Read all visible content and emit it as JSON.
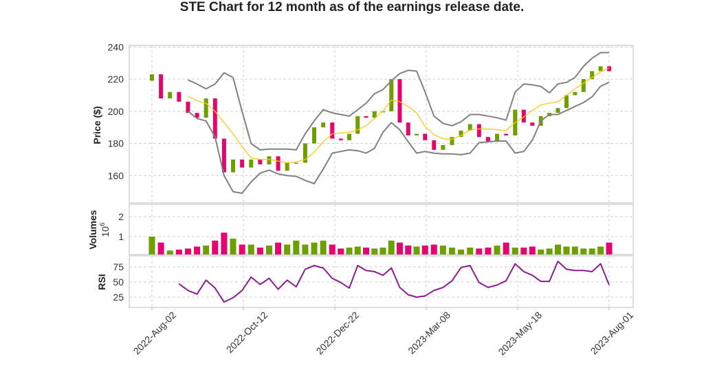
{
  "chart_data": [
    {
      "type": "candlestick",
      "title": "STE Chart for 12 month as of the earnings release date.",
      "ylabel": "Price ($)",
      "ylim": [
        143,
        241
      ],
      "yticks": [
        160,
        180,
        200,
        220,
        240
      ],
      "grid": true,
      "x_ticks": [
        {
          "label": "2022-Aug-02",
          "date": "2022-08-02",
          "index": 0
        },
        {
          "label": "2022-Oct-12",
          "date": "2022-10-12",
          "index": 50
        },
        {
          "label": "2022-Dec-22",
          "date": "2022-12-22",
          "index": 100
        },
        {
          "label": "2023-Mar-08",
          "date": "2023-03-08",
          "index": 150
        },
        {
          "label": "2023-May-18",
          "date": "2023-05-18",
          "index": 200
        },
        {
          "label": "2023-Aug-01",
          "date": "2023-08-01",
          "index": 250
        }
      ],
      "dates": [
        "2022-08-02",
        "2022-08-09",
        "2022-08-16",
        "2022-08-23",
        "2022-08-30",
        "2022-09-06",
        "2022-09-13",
        "2022-09-20",
        "2022-09-27",
        "2022-10-04",
        "2022-10-11",
        "2022-10-18",
        "2022-10-25",
        "2022-11-01",
        "2022-11-08",
        "2022-11-15",
        "2022-11-22",
        "2022-11-29",
        "2022-12-06",
        "2022-12-13",
        "2022-12-20",
        "2022-12-27",
        "2023-01-03",
        "2023-01-10",
        "2023-01-17",
        "2023-01-24",
        "2023-01-31",
        "2023-02-07",
        "2023-02-14",
        "2023-02-21",
        "2023-02-28",
        "2023-03-07",
        "2023-03-14",
        "2023-03-21",
        "2023-03-28",
        "2023-04-04",
        "2023-04-11",
        "2023-04-18",
        "2023-04-25",
        "2023-05-02",
        "2023-05-09",
        "2023-05-16",
        "2023-05-23",
        "2023-05-30",
        "2023-06-06",
        "2023-06-13",
        "2023-06-20",
        "2023-06-27",
        "2023-07-04",
        "2023-07-11",
        "2023-07-18",
        "2023-07-25",
        "2023-08-01"
      ],
      "close": [
        223,
        208,
        212,
        206,
        199,
        196,
        208,
        183,
        162,
        170,
        165,
        170,
        167,
        172,
        163,
        168,
        168,
        180,
        190,
        193,
        183,
        182,
        186,
        197,
        196,
        200,
        200,
        220,
        193,
        185,
        186,
        182,
        176,
        179,
        184,
        188,
        192,
        184,
        181,
        186,
        185,
        201,
        193,
        191,
        197,
        199,
        202,
        210,
        212,
        220,
        225,
        228,
        225
      ],
      "bollinger_upper": [
        null,
        null,
        null,
        null,
        219.5,
        217,
        214,
        217,
        224,
        221,
        200,
        180,
        176,
        176.5,
        176.5,
        176.5,
        176,
        186,
        194,
        201,
        199,
        198,
        197,
        201,
        205,
        211,
        213.5,
        219,
        223.5,
        225.5,
        225,
        212,
        197,
        192.5,
        191,
        193.5,
        198,
        198,
        197,
        196,
        194.5,
        212,
        217,
        216.5,
        215.5,
        211.5,
        217,
        218,
        221,
        228,
        233,
        236.5,
        236.5
      ],
      "moving_average": [
        null,
        null,
        null,
        null,
        209.3,
        206.5,
        205,
        200,
        193,
        186,
        178,
        171,
        170,
        170,
        169,
        168,
        168.5,
        170,
        174.5,
        181,
        186,
        186.5,
        187,
        188.5,
        191,
        195.5,
        200,
        207,
        206,
        203,
        199,
        190.5,
        185.5,
        183,
        182.5,
        185,
        188.5,
        189,
        189,
        188.5,
        188,
        193,
        196.5,
        200.5,
        204,
        205,
        206,
        210,
        214,
        217.5,
        221,
        224.5,
        227
      ],
      "bollinger_lower": [
        null,
        null,
        null,
        null,
        200,
        195.5,
        194,
        184,
        160,
        150,
        149,
        156,
        161.5,
        163.4,
        161,
        160,
        159.5,
        157,
        155,
        164,
        174,
        175,
        176,
        175.5,
        174,
        177,
        187,
        193,
        188.5,
        181,
        174,
        175,
        174,
        173.5,
        173.5,
        173,
        174,
        180.5,
        181,
        181.5,
        181.5,
        174,
        175,
        182,
        194,
        198,
        198,
        200.5,
        203,
        205.5,
        209,
        215.6,
        218
      ],
      "colors": {
        "up": "#6e9f00",
        "down": "#e2066e",
        "bands": "#808080",
        "moving_average": "#ffc61a"
      }
    },
    {
      "type": "bar",
      "ylabel": "Volumes",
      "yunit": "10",
      "yunit_exp": "6",
      "ylim": [
        0.1,
        2.63
      ],
      "yticks": [
        1,
        2
      ],
      "grid": true,
      "values": [
        1.0,
        0.7,
        0.3,
        0.35,
        0.4,
        0.5,
        0.55,
        0.8,
        1.2,
        0.9,
        0.6,
        0.6,
        0.45,
        0.55,
        0.7,
        0.6,
        0.8,
        0.6,
        0.7,
        0.8,
        0.6,
        0.4,
        0.45,
        0.5,
        0.45,
        0.4,
        0.45,
        0.8,
        0.7,
        0.55,
        0.5,
        0.55,
        0.6,
        0.55,
        0.45,
        0.35,
        0.45,
        0.4,
        0.45,
        0.55,
        0.7,
        0.45,
        0.45,
        0.5,
        0.35,
        0.4,
        0.6,
        0.5,
        0.5,
        0.4,
        0.4,
        0.5,
        0.7
      ]
    },
    {
      "type": "line",
      "ylabel": "RSI",
      "ylim": [
        8,
        93
      ],
      "yticks": [
        25,
        50,
        75
      ],
      "grid": true,
      "values": [
        null,
        null,
        null,
        47,
        36,
        30,
        53,
        40,
        17,
        24,
        36,
        58,
        46,
        56,
        38,
        53,
        42,
        71,
        77,
        73,
        56,
        49,
        40,
        77,
        69,
        67,
        61,
        73,
        41,
        29,
        25,
        27,
        36,
        41,
        52,
        74,
        77,
        49,
        41,
        45,
        52,
        80,
        67,
        61,
        51,
        51,
        84,
        71,
        69,
        69,
        67,
        80,
        45
      ],
      "color": "#8b1a96"
    }
  ]
}
